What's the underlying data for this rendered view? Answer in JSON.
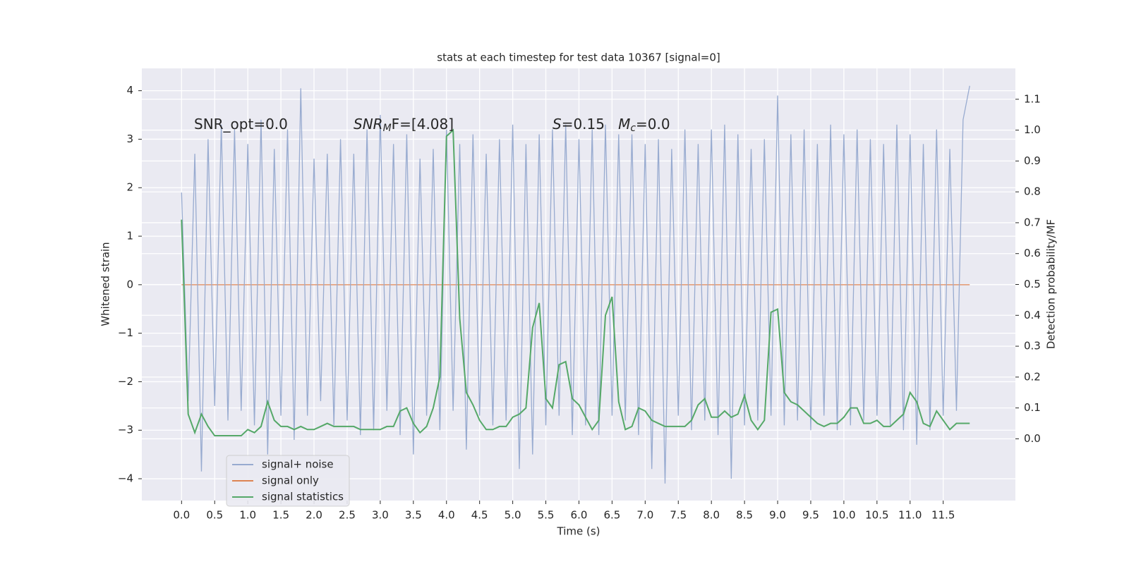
{
  "chart_data": {
    "type": "line",
    "title": "stats at each timestep for test data 10367 [signal=0]",
    "xlabel": "Time (s)",
    "ylabel": "Whitened strain",
    "y2label": "Detection probability/MF",
    "x": [
      0,
      0.1,
      0.2,
      0.3,
      0.4,
      0.5,
      0.6,
      0.7,
      0.8,
      0.9,
      1,
      1.1,
      1.2,
      1.3,
      1.4,
      1.5,
      1.6,
      1.7,
      1.8,
      1.9,
      2,
      2.1,
      2.2,
      2.3,
      2.4,
      2.5,
      2.6,
      2.7,
      2.8,
      2.9,
      3,
      3.1,
      3.2,
      3.3,
      3.4,
      3.5,
      3.6,
      3.7,
      3.8,
      3.9,
      4,
      4.1,
      4.2,
      4.3,
      4.4,
      4.5,
      4.6,
      4.7,
      4.8,
      4.9,
      5,
      5.1,
      5.2,
      5.3,
      5.4,
      5.5,
      5.6,
      5.7,
      5.8,
      5.9,
      6,
      6.1,
      6.2,
      6.3,
      6.4,
      6.5,
      6.6,
      6.7,
      6.8,
      6.9,
      7,
      7.1,
      7.2,
      7.3,
      7.4,
      7.5,
      7.6,
      7.7,
      7.8,
      7.9,
      8,
      8.1,
      8.2,
      8.3,
      8.4,
      8.5,
      8.6,
      8.7,
      8.8,
      8.9,
      9,
      9.1,
      9.2,
      9.3,
      9.4,
      9.5,
      9.6,
      9.7,
      9.8,
      9.9,
      10,
      10.1,
      10.2,
      10.3,
      10.4,
      10.5,
      10.6,
      10.7,
      10.8,
      10.9,
      11,
      11.1,
      11.2,
      11.3,
      11.4,
      11.5,
      11.6,
      11.7,
      11.8,
      11.9
    ],
    "series": [
      {
        "name": "signal+ noise",
        "color": "#98abd0",
        "values": [
          1.9,
          -2.4,
          2.7,
          -3.85,
          3.0,
          -2.5,
          3.3,
          -2.8,
          3.2,
          -2.6,
          2.9,
          -2.9,
          3.4,
          -3.5,
          2.8,
          -2.7,
          3.2,
          -3.2,
          4.05,
          -2.7,
          2.6,
          -2.4,
          2.7,
          -2.9,
          3.0,
          -2.8,
          2.7,
          -3.1,
          3.2,
          -3.0,
          3.5,
          -2.6,
          2.9,
          -3.1,
          3.1,
          -3.5,
          2.6,
          -2.7,
          2.8,
          -3.0,
          3.2,
          -2.6,
          2.9,
          -3.4,
          3.1,
          -2.7,
          2.7,
          -2.9,
          3.0,
          -2.8,
          3.3,
          -3.8,
          2.9,
          -3.5,
          3.1,
          -2.9,
          3.2,
          -2.7,
          3.3,
          -3.1,
          3.0,
          -2.9,
          3.2,
          -3.1,
          3.3,
          -2.7,
          3.1,
          -2.8,
          3.1,
          -3.1,
          2.9,
          -3.8,
          3.0,
          -4.1,
          2.8,
          -2.7,
          3.2,
          -3.0,
          2.9,
          -2.8,
          3.2,
          -3.1,
          3.3,
          -4.0,
          3.1,
          -2.9,
          2.8,
          -2.8,
          3.0,
          -2.7,
          3.9,
          -2.9,
          3.1,
          -2.8,
          3.2,
          -3.0,
          2.9,
          -2.7,
          3.3,
          -3.0,
          3.1,
          -2.9,
          3.2,
          -2.8,
          3.0,
          -2.7,
          2.9,
          -2.9,
          3.3,
          -3.0,
          3.1,
          -3.3,
          2.9,
          -3.0,
          3.2,
          -2.7,
          2.8,
          -2.6,
          3.4,
          4.1
        ]
      },
      {
        "name": "signal only",
        "color": "#dd8452",
        "values": [
          0,
          0,
          0,
          0,
          0,
          0,
          0,
          0,
          0,
          0,
          0,
          0,
          0,
          0,
          0,
          0,
          0,
          0,
          0,
          0,
          0,
          0,
          0,
          0,
          0,
          0,
          0,
          0,
          0,
          0,
          0,
          0,
          0,
          0,
          0,
          0,
          0,
          0,
          0,
          0,
          0,
          0,
          0,
          0,
          0,
          0,
          0,
          0,
          0,
          0,
          0,
          0,
          0,
          0,
          0,
          0,
          0,
          0,
          0,
          0,
          0,
          0,
          0,
          0,
          0,
          0,
          0,
          0,
          0,
          0,
          0,
          0,
          0,
          0,
          0,
          0,
          0,
          0,
          0,
          0,
          0,
          0,
          0,
          0,
          0,
          0,
          0,
          0,
          0,
          0,
          0,
          0,
          0,
          0,
          0,
          0,
          0,
          0,
          0,
          0,
          0,
          0,
          0,
          0,
          0,
          0,
          0,
          0,
          0,
          0,
          0,
          0,
          0,
          0,
          0,
          0,
          0,
          0,
          0,
          0
        ]
      },
      {
        "name": "signal statistics",
        "color": "#55a868",
        "axis": "y2",
        "values": [
          0.71,
          0.08,
          0.02,
          0.08,
          0.04,
          0.01,
          0.01,
          0.01,
          0.01,
          0.01,
          0.03,
          0.02,
          0.04,
          0.12,
          0.06,
          0.04,
          0.04,
          0.03,
          0.04,
          0.03,
          0.03,
          0.04,
          0.05,
          0.04,
          0.04,
          0.04,
          0.04,
          0.03,
          0.03,
          0.03,
          0.03,
          0.04,
          0.04,
          0.09,
          0.1,
          0.05,
          0.02,
          0.04,
          0.1,
          0.2,
          0.98,
          1.0,
          0.39,
          0.15,
          0.11,
          0.06,
          0.03,
          0.03,
          0.04,
          0.04,
          0.07,
          0.08,
          0.1,
          0.36,
          0.44,
          0.13,
          0.1,
          0.24,
          0.25,
          0.13,
          0.11,
          0.07,
          0.03,
          0.06,
          0.4,
          0.46,
          0.12,
          0.03,
          0.04,
          0.1,
          0.09,
          0.06,
          0.05,
          0.04,
          0.04,
          0.04,
          0.04,
          0.06,
          0.11,
          0.13,
          0.07,
          0.07,
          0.09,
          0.07,
          0.08,
          0.14,
          0.06,
          0.03,
          0.06,
          0.41,
          0.42,
          0.15,
          0.12,
          0.11,
          0.09,
          0.07,
          0.05,
          0.04,
          0.05,
          0.05,
          0.07,
          0.1,
          0.1,
          0.05,
          0.05,
          0.06,
          0.04,
          0.04,
          0.06,
          0.08,
          0.15,
          0.12,
          0.05,
          0.04,
          0.09,
          0.06,
          0.03,
          0.05,
          0.05,
          0.05
        ]
      }
    ],
    "xlim": [
      -0.6,
      12.59
    ],
    "ylim": [
      -4.45,
      4.46
    ],
    "y2lim": [
      -0.2,
      1.2
    ],
    "xticks": [
      {
        "value": 0,
        "label": "0.0"
      },
      {
        "value": 0.5,
        "label": "0.5"
      },
      {
        "value": 1,
        "label": "1.0"
      },
      {
        "value": 1.5,
        "label": "1.5"
      },
      {
        "value": 2,
        "label": "2.0"
      },
      {
        "value": 2.5,
        "label": "2.5"
      },
      {
        "value": 3,
        "label": "3.0"
      },
      {
        "value": 3.5,
        "label": "3.5"
      },
      {
        "value": 4,
        "label": "4.0"
      },
      {
        "value": 4.5,
        "label": "4.5"
      },
      {
        "value": 5,
        "label": "5.0"
      },
      {
        "value": 5.5,
        "label": "5.5"
      },
      {
        "value": 6,
        "label": "6.0"
      },
      {
        "value": 6.5,
        "label": "6.5"
      },
      {
        "value": 7,
        "label": "7.0"
      },
      {
        "value": 7.5,
        "label": "7.5"
      },
      {
        "value": 8,
        "label": "8.0"
      },
      {
        "value": 8.5,
        "label": "8.5"
      },
      {
        "value": 9,
        "label": "9.0"
      },
      {
        "value": 9.5,
        "label": "9.5"
      },
      {
        "value": 10,
        "label": "10.0"
      },
      {
        "value": 10.5,
        "label": "10.5"
      },
      {
        "value": 11,
        "label": "11.0"
      },
      {
        "value": 11.5,
        "label": "11.5"
      }
    ],
    "yticks": [
      {
        "value": -4,
        "label": "−4"
      },
      {
        "value": -3,
        "label": "−3"
      },
      {
        "value": -2,
        "label": "−2"
      },
      {
        "value": -1,
        "label": "−1"
      },
      0,
      1,
      2,
      3,
      4
    ],
    "y2ticks": [
      {
        "value": 0,
        "label": "0.0"
      },
      {
        "value": 0.1,
        "label": "0.1"
      },
      {
        "value": 0.2,
        "label": "0.2"
      },
      {
        "value": 0.3,
        "label": "0.3"
      },
      {
        "value": 0.4,
        "label": "0.4"
      },
      {
        "value": 0.5,
        "label": "0.5"
      },
      {
        "value": 0.6,
        "label": "0.6"
      },
      {
        "value": 0.7,
        "label": "0.7"
      },
      {
        "value": 0.8,
        "label": "0.8"
      },
      {
        "value": 0.9,
        "label": "0.9"
      },
      {
        "value": 1,
        "label": "1.0"
      },
      {
        "value": 1.1,
        "label": "1.1"
      }
    ],
    "grid": true,
    "legend": "lower left",
    "annotations": [
      {
        "parts": [
          {
            "text": "SNR_opt=0.0"
          }
        ]
      },
      {
        "parts": [
          {
            "text": "SNR",
            "italic": true
          },
          {
            "text": "M",
            "italic": true,
            "sub": true
          },
          {
            "text": "F=[4.08]"
          }
        ]
      },
      {
        "parts": [
          {
            "text": "S",
            "italic": true
          },
          {
            "text": "=0.15   "
          },
          {
            "text": "M",
            "italic": true
          },
          {
            "text": "c",
            "italic": true,
            "sub": true
          },
          {
            "text": "=0.0"
          }
        ]
      }
    ]
  }
}
